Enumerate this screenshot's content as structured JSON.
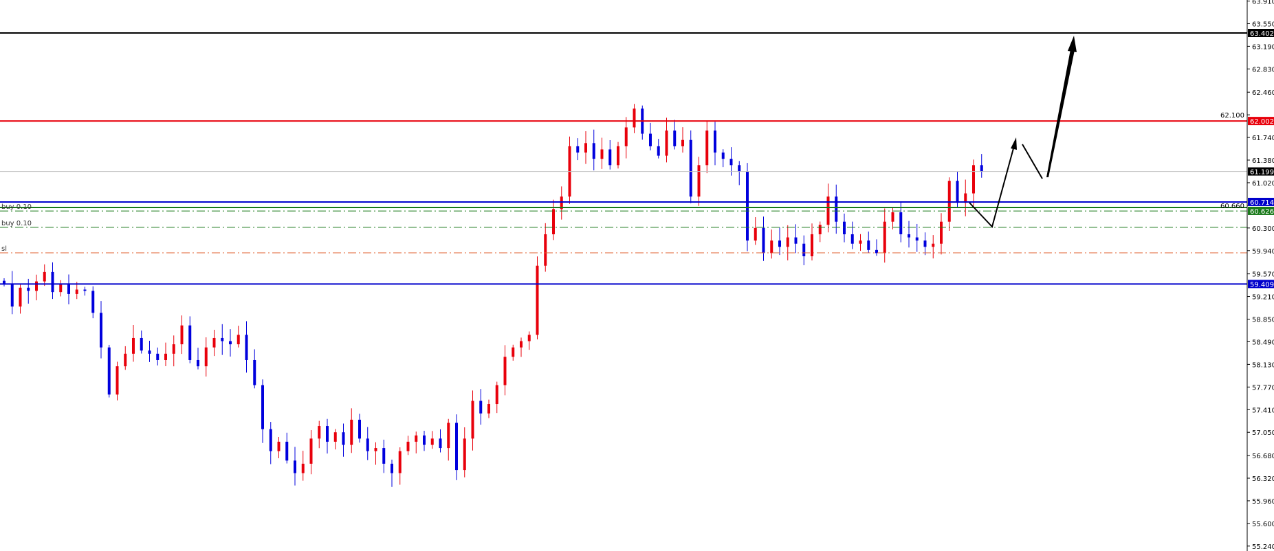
{
  "chart_data": {
    "type": "candlestick",
    "title": "",
    "ylim": [
      55.24,
      63.91
    ],
    "y_ticks": [
      63.91,
      63.55,
      63.19,
      62.83,
      62.46,
      62.1,
      61.74,
      61.38,
      61.02,
      60.66,
      60.3,
      59.94,
      59.57,
      59.21,
      58.85,
      58.49,
      58.13,
      57.77,
      57.41,
      57.05,
      56.68,
      56.32,
      55.96,
      55.6,
      55.24
    ],
    "closes": [
      59.41,
      59.05,
      59.35,
      59.3,
      59.45,
      59.6,
      59.28,
      59.4,
      59.25,
      59.32,
      59.3,
      58.95,
      58.4,
      57.65,
      58.1,
      58.3,
      58.55,
      58.35,
      58.3,
      58.2,
      58.3,
      58.45,
      58.75,
      58.2,
      58.1,
      58.4,
      58.55,
      58.5,
      58.45,
      58.6,
      58.2,
      57.8,
      57.1,
      56.75,
      56.9,
      56.6,
      56.4,
      56.55,
      56.95,
      57.15,
      56.9,
      57.05,
      56.85,
      57.25,
      56.95,
      56.75,
      56.8,
      56.55,
      56.4,
      56.75,
      56.9,
      57.0,
      56.85,
      56.95,
      56.8,
      57.2,
      56.45,
      56.95,
      57.55,
      57.35,
      57.5,
      57.8,
      58.25,
      58.4,
      58.5,
      58.6,
      59.7,
      60.2,
      60.6,
      60.8,
      61.6,
      61.5,
      61.65,
      61.4,
      61.55,
      61.3,
      61.6,
      61.9,
      62.2,
      61.8,
      61.6,
      61.45,
      61.85,
      61.6,
      61.7,
      60.8,
      61.3,
      61.85,
      61.5,
      61.4,
      61.3,
      61.2,
      60.1,
      60.3,
      59.9,
      60.1,
      60.0,
      60.15,
      60.05,
      59.85,
      60.2,
      60.35,
      60.8,
      60.4,
      60.2,
      60.05,
      60.1,
      59.95,
      59.9,
      60.4,
      60.55,
      60.2,
      60.15,
      60.1,
      60.0,
      60.05,
      60.4,
      61.05,
      60.7,
      60.85,
      61.3,
      61.2
    ],
    "bull_color": "#e8000b",
    "bear_color": "#0000dd",
    "levels": [
      {
        "price": 63.402,
        "label": "63.402",
        "color": "#000000",
        "style": "solid"
      },
      {
        "price": 62.002,
        "label": "62.002",
        "color": "#e8000b",
        "style": "solid"
      },
      {
        "price": 61.199,
        "label": "61.199",
        "color": "#c0c0c0",
        "style": "solid",
        "tag_color": "#000000"
      },
      {
        "price": 60.714,
        "label": "60.714",
        "color": "#0000cc",
        "style": "solid"
      },
      {
        "price": 60.626,
        "label": "60.626",
        "color": "#1a7a1a",
        "style": "solid"
      },
      {
        "price": 59.409,
        "label": "59.409",
        "color": "#0000cc",
        "style": "solid"
      }
    ],
    "orders": [
      {
        "price": 60.57,
        "label": "buy 0.10",
        "color": "#1a7a1a"
      },
      {
        "price": 60.31,
        "label": "buy 0.10",
        "color": "#1a7a1a"
      },
      {
        "price": 59.905,
        "label": "sl",
        "color": "#e06030"
      }
    ]
  }
}
